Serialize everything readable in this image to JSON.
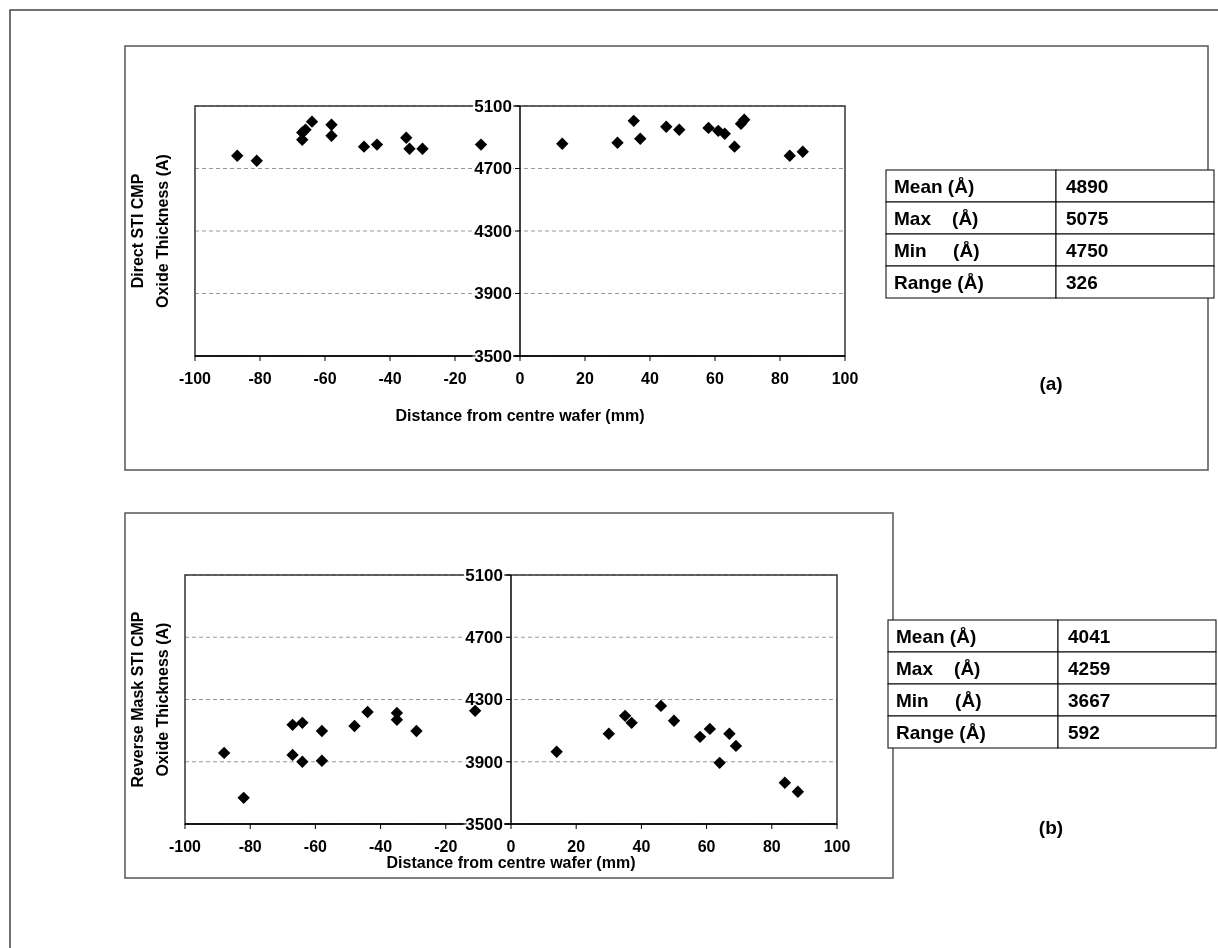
{
  "chart_data": [
    {
      "type": "scatter",
      "title": "Direct STI CMP",
      "ylabel": "Oxide Thickness (A)",
      "xlabel": "Distance from centre wafer (mm)",
      "xlim": [
        -100,
        100
      ],
      "xticks": [
        -100,
        -80,
        -60,
        -40,
        -20,
        0,
        20,
        40,
        60,
        80,
        100
      ],
      "ylim": [
        3500,
        5100
      ],
      "yticks": [
        3500,
        3900,
        4300,
        4700,
        5100
      ],
      "grid": "y",
      "marker": "diamond",
      "series": [
        {
          "color": "#000000",
          "x": [
            -87,
            -81,
            -67,
            -67,
            -66,
            -64,
            -58,
            -58,
            -48,
            -44,
            -35,
            -34,
            -30,
            -12,
            13,
            30,
            35,
            37,
            45,
            49,
            58,
            61,
            63,
            66,
            68,
            69,
            83,
            87
          ],
          "values": [
            4782,
            4750,
            4930,
            4884,
            4948,
            5000,
            4980,
            4910,
            4840,
            4853,
            4897,
            4826,
            4826,
            4853,
            4858,
            4865,
            5005,
            4890,
            4967,
            4948,
            4960,
            4941,
            4922,
            4840,
            4986,
            5012,
            4782,
            4807
          ]
        }
      ],
      "annotations": [
        "Mean (Å)",
        "4890",
        "Max    (Å)",
        "5075",
        "Min     (Å)",
        "4750",
        "Range (Å)",
        "326",
        "(a)"
      ]
    },
    {
      "type": "scatter",
      "title": "Reverse Mask STI CMP",
      "ylabel": "Oxide Thickness (A)",
      "xlabel": "Distance from centre wafer (mm)",
      "xlim": [
        -100,
        100
      ],
      "xticks": [
        -100,
        -80,
        -60,
        -40,
        -20,
        0,
        20,
        40,
        60,
        80,
        100
      ],
      "ylim": [
        3500,
        5100
      ],
      "yticks": [
        3500,
        3900,
        4300,
        4700,
        5100
      ],
      "grid": "y",
      "marker": "diamond",
      "series": [
        {
          "color": "#000000",
          "x": [
            -88,
            -82,
            -67,
            -64,
            -67,
            -64,
            -58,
            -58,
            -48,
            -44,
            -35,
            -35,
            -29,
            -11,
            14,
            30,
            35,
            37,
            46,
            50,
            58,
            61,
            64,
            67,
            69,
            84,
            88
          ],
          "values": [
            3957,
            3668,
            4137,
            4150,
            3944,
            3900,
            4098,
            3906,
            4130,
            4220,
            4214,
            4170,
            4098,
            4227,
            3964,
            4080,
            4195,
            4150,
            4259,
            4163,
            4060,
            4111,
            3893,
            4080,
            4002,
            3765,
            3707
          ]
        }
      ],
      "annotations": [
        "Mean (Å)",
        "4041",
        "Max    (Å)",
        "4259",
        "Min     (Å)",
        "3667",
        "Range (Å)",
        "592",
        "(b)"
      ]
    }
  ]
}
